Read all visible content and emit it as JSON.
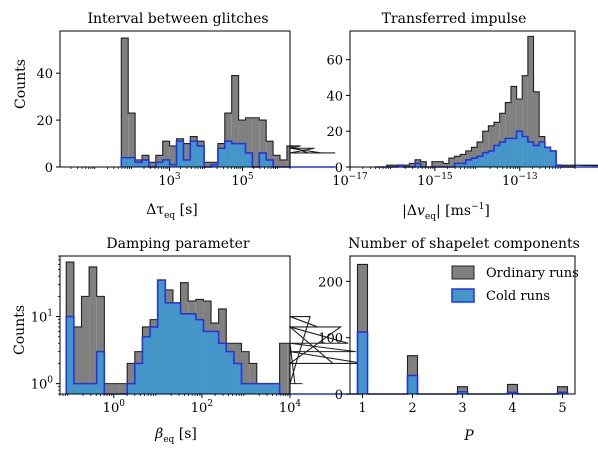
{
  "colors": {
    "gray_fill": "#808080",
    "gray_edge": "#202020",
    "blue_fill": "#4596C8",
    "blue_edge": "#1F35E6"
  },
  "chart_data": [
    {
      "id": "p1",
      "type": "histogram",
      "title": "Interval between glitches",
      "xlabel": {
        "base": "Δτ",
        "sub": "eq",
        "unit": " [s]"
      },
      "ylabel": "Counts",
      "xscale": "log",
      "yscale": "linear",
      "xlim": [
        1.0,
        2000000.0
      ],
      "ylim": [
        0,
        58
      ],
      "xticks": [
        {
          "v": 1000,
          "label": "10",
          "sup": "3"
        },
        {
          "v": 100000,
          "label": "10",
          "sup": "5"
        }
      ],
      "yticks": [
        {
          "v": 0,
          "label": "0"
        },
        {
          "v": 20,
          "label": "20"
        },
        {
          "v": 40,
          "label": "40"
        }
      ],
      "grid": false,
      "bins_log_start": 1.68,
      "bins_log_width": 0.189,
      "series": [
        {
          "name": "Ordinary runs",
          "values": [
            55,
            23,
            3,
            5,
            2,
            5,
            11,
            9,
            12,
            10,
            13,
            11,
            2,
            2,
            10,
            23,
            39,
            20,
            21,
            21,
            20,
            11,
            5,
            3,
            9,
            8,
            9,
            6,
            8,
            6,
            6,
            6
          ]
        },
        {
          "name": "Cold runs",
          "values": [
            4,
            4,
            2,
            3,
            0,
            2,
            3,
            1,
            11,
            3,
            11,
            9,
            0,
            1,
            8,
            11,
            10,
            10,
            6,
            0,
            6,
            3,
            0,
            0,
            0,
            0,
            0,
            0,
            0,
            0,
            0,
            0
          ]
        }
      ]
    },
    {
      "id": "p2",
      "type": "histogram",
      "title": "Transferred impulse",
      "xlabel": {
        "pre": "|Δ",
        "base": "v",
        "sub": "eq",
        "post": "| [ms",
        "sup": "−1",
        "end": "]"
      },
      "ylabel": "",
      "xscale": "log",
      "yscale": "linear",
      "xlim": [
        1e-17,
        2e-12
      ],
      "ylim": [
        0,
        76
      ],
      "xticks": [
        {
          "v": 1e-17,
          "label": "10",
          "sup": "−17"
        },
        {
          "v": 1e-15,
          "label": "10",
          "sup": "−15"
        },
        {
          "v": 1e-13,
          "label": "10",
          "sup": "−13"
        }
      ],
      "yticks": [
        {
          "v": 0,
          "label": "0"
        },
        {
          "v": 20,
          "label": "20"
        },
        {
          "v": 40,
          "label": "40"
        },
        {
          "v": 60,
          "label": "60"
        }
      ],
      "grid": false,
      "bins_log_start": -16.4,
      "bins_log_width": 0.133,
      "series": [
        {
          "name": "Ordinary runs",
          "values": [
            0,
            0,
            1,
            1,
            1,
            1,
            2,
            4,
            3,
            0,
            3,
            3,
            2,
            5,
            6,
            7,
            9,
            11,
            14,
            20,
            23,
            25,
            30,
            36,
            45,
            38,
            51,
            73,
            42,
            17,
            10,
            8,
            1,
            1,
            1,
            1,
            1,
            1,
            1,
            1,
            1,
            1,
            1,
            1,
            1,
            1,
            1,
            0
          ]
        },
        {
          "name": "Cold runs",
          "values": [
            0,
            0,
            0,
            0,
            1,
            0,
            0,
            2,
            0,
            0,
            0,
            0,
            0,
            0,
            2,
            2,
            4,
            5,
            6,
            8,
            9,
            12,
            14,
            16,
            16,
            20,
            17,
            14,
            12,
            14,
            11,
            9,
            1,
            0,
            0,
            0,
            0,
            0,
            0,
            0,
            0,
            0,
            0,
            0,
            0,
            0,
            0,
            0
          ]
        }
      ]
    },
    {
      "id": "p3",
      "type": "histogram",
      "title": "Damping parameter",
      "xlabel": {
        "base": "β",
        "sub": "eq",
        "unit": " [s]"
      },
      "ylabel": "Counts",
      "xscale": "log",
      "yscale": "log",
      "xlim": [
        0.06,
        10000.0
      ],
      "ylim": [
        0.7,
        80
      ],
      "xticks": [
        {
          "v": 1,
          "label": "10",
          "sup": "0"
        },
        {
          "v": 100,
          "label": "10",
          "sup": "2"
        },
        {
          "v": 10000,
          "label": "10",
          "sup": "4"
        }
      ],
      "yticks": [
        {
          "v": 1,
          "label": "10",
          "sup": "0"
        },
        {
          "v": 10,
          "label": "10",
          "sup": "1"
        }
      ],
      "grid": false,
      "bins_log_start": -1.08,
      "bins_log_width": 0.173,
      "series": [
        {
          "name": "Ordinary runs",
          "values": [
            65,
            7,
            20,
            55,
            20,
            1,
            1,
            1,
            2,
            3,
            7,
            9,
            30,
            25,
            16,
            32,
            17,
            18,
            17,
            8,
            13,
            4,
            4,
            3,
            2,
            1,
            1,
            1,
            4,
            4,
            1,
            1,
            10,
            7,
            7,
            2,
            7,
            4,
            3,
            2
          ]
        },
        {
          "name": "Cold runs",
          "values": [
            10,
            1,
            1,
            1,
            3,
            0,
            0,
            0,
            1,
            2,
            5,
            7,
            35,
            16,
            16,
            11,
            11,
            9,
            6,
            6,
            4,
            3,
            2,
            1,
            1,
            1,
            1,
            1,
            0,
            0,
            0,
            0,
            0,
            0,
            0,
            0,
            0,
            0,
            0,
            0
          ]
        }
      ]
    },
    {
      "id": "p4",
      "type": "histogram",
      "title": "Number of shapelet components",
      "xlabel": {
        "base": "P"
      },
      "ylabel": "",
      "xscale": "linear",
      "yscale": "linear",
      "xlim": [
        0.75,
        5.25
      ],
      "ylim": [
        0,
        245
      ],
      "xticks": [
        {
          "v": 1,
          "label": "1"
        },
        {
          "v": 2,
          "label": "2"
        },
        {
          "v": 3,
          "label": "3"
        },
        {
          "v": 4,
          "label": "4"
        },
        {
          "v": 5,
          "label": "5"
        }
      ],
      "yticks": [
        {
          "v": 0,
          "label": "0"
        },
        {
          "v": 100,
          "label": "100"
        },
        {
          "v": 200,
          "label": "200"
        }
      ],
      "grid": false,
      "bins_linear_start": 0.9,
      "bins_linear_width": 0.2,
      "series": [
        {
          "name": "Ordinary runs",
          "values": [
            230,
            0,
            0,
            0,
            0,
            68,
            0,
            0,
            0,
            0,
            13,
            0,
            0,
            0,
            0,
            17,
            0,
            0,
            0,
            0,
            13
          ]
        },
        {
          "name": "Cold runs",
          "values": [
            110,
            0,
            0,
            0,
            0,
            33,
            0,
            0,
            0,
            0,
            4,
            0,
            0,
            0,
            0,
            3,
            0,
            0,
            0,
            0,
            3
          ]
        }
      ],
      "legend": {
        "placement": "top-right",
        "entries": [
          "Ordinary runs",
          "Cold runs"
        ]
      }
    }
  ]
}
